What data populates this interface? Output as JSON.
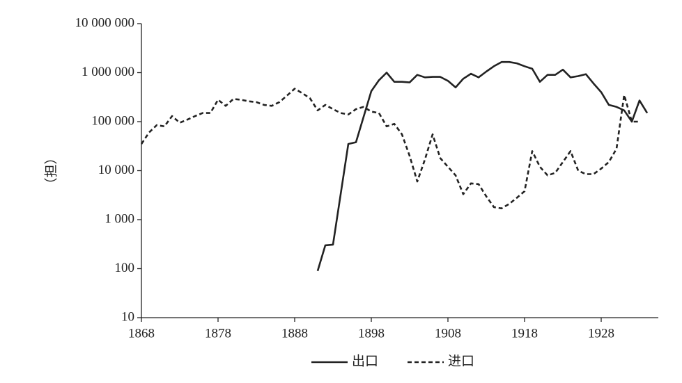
{
  "chart_data": {
    "type": "line",
    "y_label": "（担）",
    "log_y": true,
    "xlim": [
      1868,
      1936
    ],
    "xticks": [
      1868,
      1878,
      1888,
      1898,
      1908,
      1918,
      1928
    ],
    "ylim": [
      10,
      10000000
    ],
    "yticks": [
      10,
      100,
      {
        "value": 1000,
        "label": "1 000"
      },
      {
        "value": 10000,
        "label": "10 000"
      },
      {
        "value": 100000,
        "label": "100 000"
      },
      {
        "value": 1000000,
        "label": "1 000 000"
      },
      {
        "value": 10000000,
        "label": "10 000 000"
      }
    ],
    "series": [
      {
        "name": "出口",
        "color": "#222222",
        "dash": false,
        "x": [
          1891,
          1892,
          1893,
          1895,
          1896,
          1898,
          1899,
          1900,
          1901,
          1902,
          1903,
          1904,
          1905,
          1906,
          1907,
          1908,
          1909,
          1910,
          1911,
          1912,
          1913,
          1914,
          1915,
          1916,
          1917,
          1918,
          1919,
          1920,
          1921,
          1922,
          1923,
          1924,
          1925,
          1926,
          1927,
          1928,
          1929,
          1930,
          1931,
          1932,
          1933,
          1934
        ],
        "values": [
          90,
          300,
          310,
          35000,
          38000,
          420000,
          700000,
          1000000,
          650000,
          650000,
          630000,
          900000,
          800000,
          820000,
          820000,
          680000,
          500000,
          750000,
          950000,
          800000,
          1050000,
          1350000,
          1650000,
          1650000,
          1550000,
          1350000,
          1200000,
          650000,
          900000,
          900000,
          1150000,
          800000,
          850000,
          930000,
          600000,
          400000,
          220000,
          200000,
          170000,
          100000,
          270000,
          150000
        ]
      },
      {
        "name": "进口",
        "color": "#222222",
        "dash": true,
        "x": [
          1868,
          1869,
          1870,
          1871,
          1872,
          1873,
          1874,
          1875,
          1876,
          1877,
          1878,
          1879,
          1880,
          1881,
          1882,
          1883,
          1884,
          1885,
          1886,
          1887,
          1888,
          1889,
          1890,
          1891,
          1892,
          1893,
          1894,
          1895,
          1896,
          1897,
          1898,
          1899,
          1900,
          1901,
          1902,
          1903,
          1904,
          1905,
          1906,
          1907,
          1908,
          1909,
          1910,
          1911,
          1912,
          1913,
          1914,
          1915,
          1916,
          1917,
          1918,
          1919,
          1920,
          1921,
          1922,
          1923,
          1924,
          1925,
          1926,
          1927,
          1928,
          1929,
          1930,
          1931,
          1932,
          1933
        ],
        "values": [
          35000,
          60000,
          85000,
          80000,
          130000,
          95000,
          110000,
          130000,
          150000,
          150000,
          280000,
          210000,
          290000,
          280000,
          260000,
          250000,
          220000,
          210000,
          250000,
          340000,
          470000,
          380000,
          300000,
          170000,
          220000,
          180000,
          150000,
          140000,
          180000,
          200000,
          160000,
          150000,
          80000,
          90000,
          55000,
          20000,
          6000,
          17000,
          55000,
          18000,
          12000,
          8000,
          3300,
          5500,
          5300,
          3000,
          1800,
          1700,
          2100,
          2800,
          3800,
          25000,
          12000,
          8000,
          9000,
          15000,
          25000,
          10000,
          8500,
          8500,
          11000,
          15000,
          28000,
          350000,
          100000,
          100000
        ]
      }
    ]
  }
}
